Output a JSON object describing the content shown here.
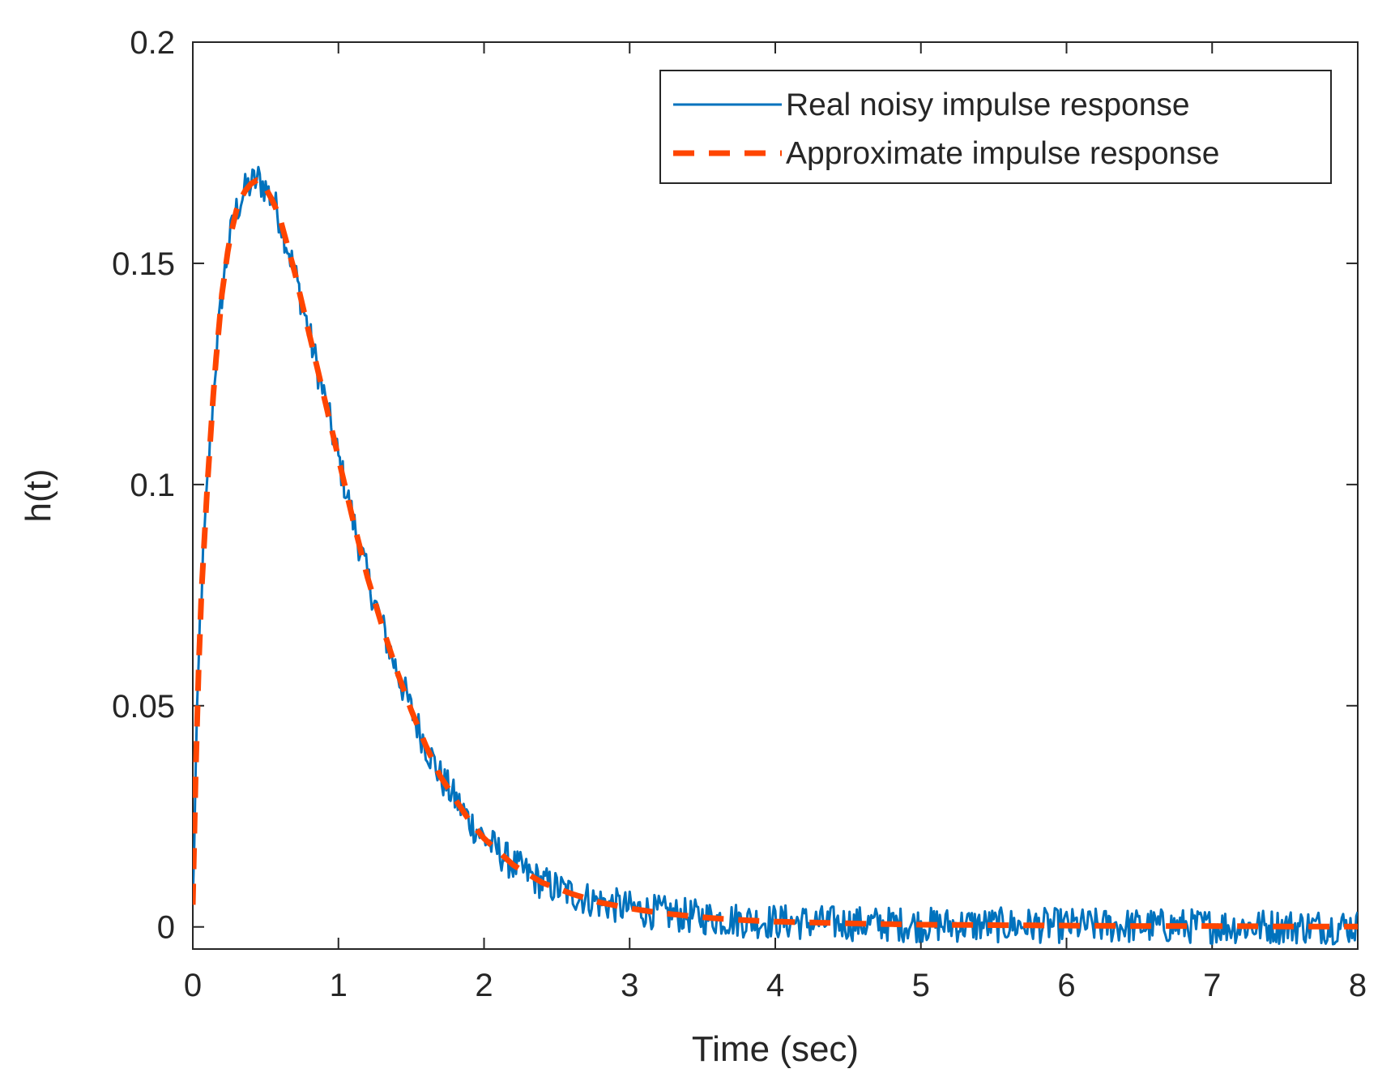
{
  "chart_data": {
    "type": "line",
    "title": "",
    "xlabel": "Time (sec)",
    "ylabel": "h(t)",
    "xlim": [
      0,
      8
    ],
    "ylim": [
      -0.005,
      0.2
    ],
    "xticks": [
      0,
      1,
      2,
      3,
      4,
      5,
      6,
      7,
      8
    ],
    "xtick_labels": [
      "0",
      "1",
      "2",
      "3",
      "4",
      "5",
      "6",
      "7",
      "8"
    ],
    "yticks": [
      0,
      0.05,
      0.1,
      0.15,
      0.2
    ],
    "ytick_labels": [
      "0",
      "0.05",
      "0.1",
      "0.15",
      "0.2"
    ],
    "grid": false,
    "legend_position": "top-right",
    "series": [
      {
        "name": "Real noisy impulse response",
        "color": "#0072BD",
        "style": "solid",
        "x": [
          0.0,
          0.02,
          0.05,
          0.1,
          0.15,
          0.2,
          0.25,
          0.3,
          0.35,
          0.4,
          0.45,
          0.5,
          0.55,
          0.6,
          0.7,
          0.8,
          0.9,
          1.0,
          1.1,
          1.2,
          1.3,
          1.4,
          1.5,
          1.6,
          1.7,
          1.8,
          1.9,
          2.0,
          2.1,
          2.2,
          2.4,
          2.6,
          2.8,
          3.0,
          3.2,
          3.4,
          3.6,
          3.8,
          4.0,
          4.5,
          5.0,
          5.5,
          6.0,
          6.5,
          7.0,
          7.5,
          8.0
        ],
        "y": [
          0.005,
          0.035,
          0.07,
          0.1,
          0.125,
          0.143,
          0.155,
          0.162,
          0.166,
          0.168,
          0.169,
          0.167,
          0.164,
          0.16,
          0.148,
          0.134,
          0.12,
          0.106,
          0.092,
          0.079,
          0.068,
          0.058,
          0.049,
          0.041,
          0.034,
          0.029,
          0.024,
          0.02,
          0.017,
          0.014,
          0.01,
          0.0075,
          0.0055,
          0.0042,
          0.0032,
          0.0025,
          0.0019,
          0.0015,
          0.0012,
          0.0008,
          0.0005,
          0.0004,
          0.0003,
          0.0002,
          0.0002,
          0.0001,
          0.0001
        ],
        "noise_amplitude": 0.004
      },
      {
        "name": "Approximate impulse response",
        "color": "#FF4500",
        "style": "dashed",
        "x": [
          0.0,
          0.02,
          0.05,
          0.1,
          0.15,
          0.2,
          0.25,
          0.3,
          0.35,
          0.4,
          0.45,
          0.5,
          0.55,
          0.6,
          0.7,
          0.8,
          0.9,
          1.0,
          1.1,
          1.2,
          1.3,
          1.4,
          1.5,
          1.6,
          1.7,
          1.8,
          1.9,
          2.0,
          2.1,
          2.2,
          2.4,
          2.6,
          2.8,
          3.0,
          3.2,
          3.4,
          3.6,
          3.8,
          4.0,
          4.5,
          5.0,
          5.5,
          6.0,
          6.5,
          7.0,
          7.5,
          8.0
        ],
        "y": [
          0.005,
          0.035,
          0.07,
          0.1,
          0.125,
          0.143,
          0.155,
          0.162,
          0.166,
          0.168,
          0.169,
          0.167,
          0.164,
          0.16,
          0.148,
          0.134,
          0.12,
          0.106,
          0.092,
          0.079,
          0.068,
          0.058,
          0.049,
          0.041,
          0.034,
          0.029,
          0.024,
          0.02,
          0.017,
          0.014,
          0.01,
          0.0075,
          0.0055,
          0.0042,
          0.0032,
          0.0025,
          0.0019,
          0.0015,
          0.0012,
          0.0008,
          0.0005,
          0.0004,
          0.0003,
          0.0002,
          0.0002,
          0.0001,
          0.0001
        ]
      }
    ],
    "colors": {
      "axis": "#262626",
      "background": "#ffffff"
    }
  }
}
